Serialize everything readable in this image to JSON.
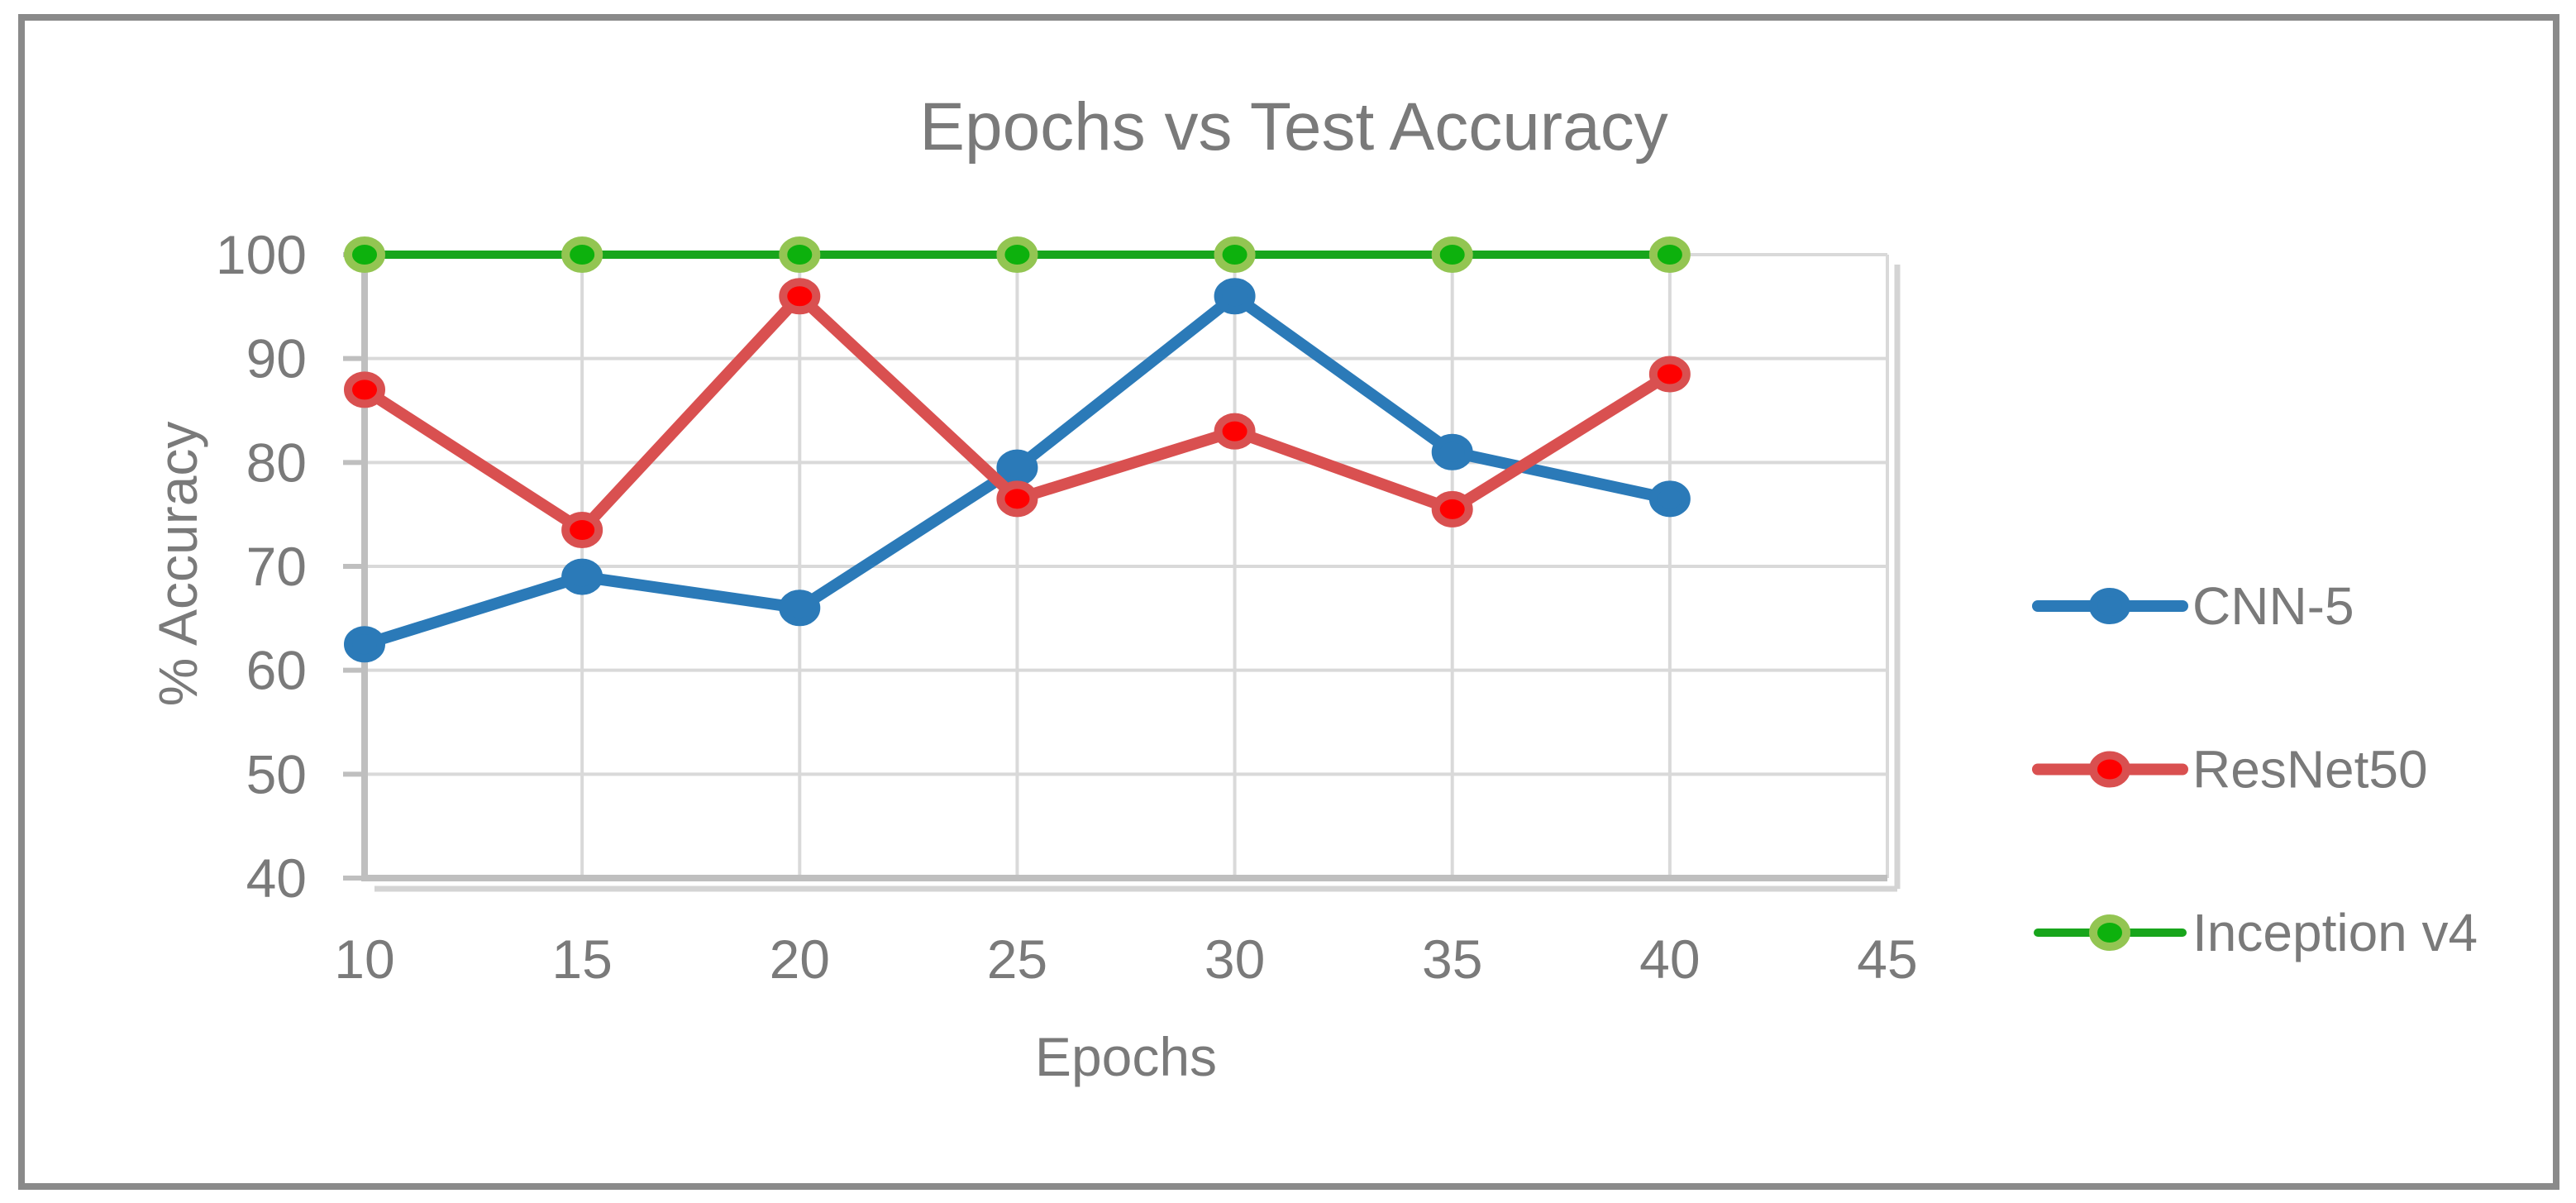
{
  "chart_data": {
    "type": "line",
    "title": "Epochs vs Test Accuracy",
    "xlabel": "Epochs",
    "ylabel": "% Accuracy",
    "x": [
      10,
      15,
      20,
      25,
      30,
      35,
      40
    ],
    "series": [
      {
        "name": "CNN-5",
        "color": "#2b7ab8",
        "marker_fill": "#2b7ab8",
        "marker_ring": "#2b7ab8",
        "values": [
          62.5,
          69,
          66,
          79.5,
          96,
          81,
          76.5
        ]
      },
      {
        "name": "ResNet50",
        "color": "#d95050",
        "marker_fill": "#fe0000",
        "marker_ring": "#d95050",
        "values": [
          87,
          73.5,
          96,
          76.5,
          83,
          75.5,
          88.5
        ]
      },
      {
        "name": "Inception v4",
        "color": "#18a51c",
        "marker_fill": "#0db10d",
        "marker_ring": "#93c552",
        "values": [
          100,
          100,
          100,
          100,
          100,
          100,
          100
        ]
      }
    ],
    "xlim": [
      10,
      45
    ],
    "ylim": [
      40,
      100
    ],
    "x_ticks": [
      10,
      15,
      20,
      25,
      30,
      35,
      40,
      45
    ],
    "y_ticks": [
      40,
      50,
      60,
      70,
      80,
      90,
      100
    ],
    "grid": true,
    "legend_position": "right",
    "colors": {
      "text": "#7a7a7a",
      "axis": "#bfbfbf",
      "grid": "#d9d9d9",
      "shadow": "#d4d4d4",
      "frame": "#8a8a8a",
      "background": "#ffffff"
    }
  }
}
